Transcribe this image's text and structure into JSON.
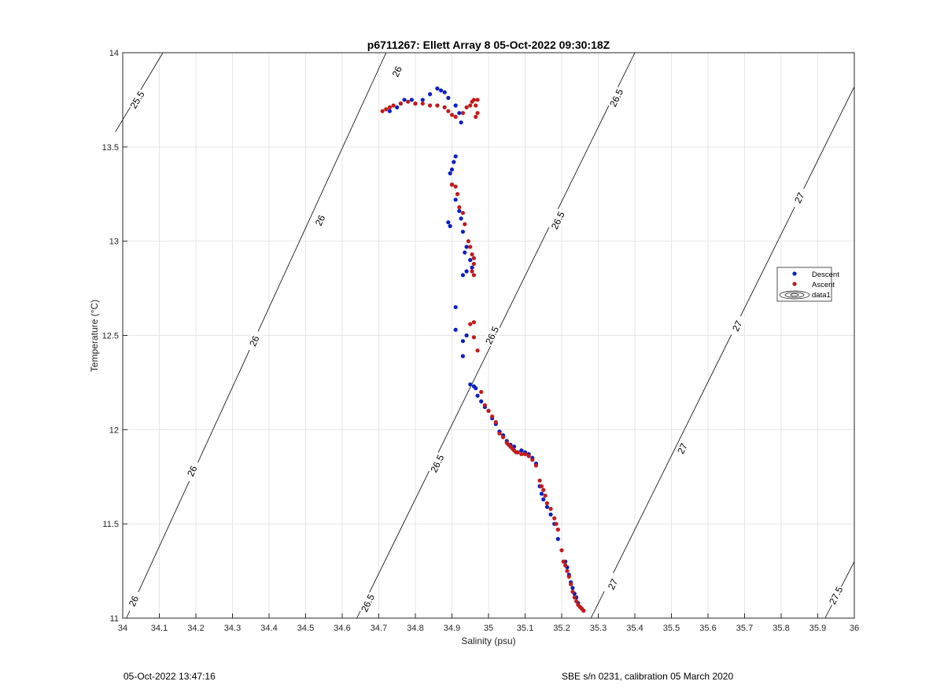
{
  "chart_data": {
    "type": "scatter",
    "title": "p6711267: Ellett Array 8 05-Oct-2022 09:30:18Z",
    "xlabel": "Salinity (psu)",
    "ylabel": "Temperature (°C)",
    "xlim": [
      34,
      36
    ],
    "ylim": [
      11,
      14
    ],
    "x_ticks": [
      34,
      34.1,
      34.2,
      34.3,
      34.4,
      34.5,
      34.6,
      34.7,
      34.8,
      34.9,
      35,
      35.1,
      35.2,
      35.3,
      35.4,
      35.5,
      35.6,
      35.7,
      35.8,
      35.9,
      36
    ],
    "x_tick_labels": [
      "34",
      "34.1",
      "34.2",
      "34.3",
      "34.4",
      "34.5",
      "34.6",
      "34.7",
      "34.8",
      "34.9",
      "35",
      "35.1",
      "35.2",
      "35.3",
      "35.4",
      "35.5",
      "35.6",
      "35.7",
      "35.8",
      "35.9",
      "36"
    ],
    "y_ticks": [
      11,
      11.5,
      12,
      12.5,
      13,
      13.5,
      14
    ],
    "y_tick_labels": [
      "11",
      "11.5",
      "12",
      "12.5",
      "13",
      "13.5",
      "14"
    ],
    "grid": true,
    "legend_position": "right",
    "legend": [
      {
        "label": "Descent",
        "color": "#0b1fc4",
        "marker": "dot"
      },
      {
        "label": "Ascent",
        "color": "#c41a1a",
        "marker": "dot"
      },
      {
        "label": "data1",
        "color": "#000000",
        "marker": "contour"
      }
    ],
    "contours": [
      {
        "label": "25.5",
        "points": [
          [
            33.98,
            13.58
          ],
          [
            34.11,
            14.0
          ]
        ],
        "labels_at": [
          [
            34.04,
            13.75
          ]
        ]
      },
      {
        "label": "26",
        "points": [
          [
            34.01,
            11.0
          ],
          [
            34.72,
            14.0
          ]
        ],
        "labels_at": [
          [
            34.75,
            13.9
          ],
          [
            34.54,
            13.11
          ],
          [
            34.36,
            12.47
          ],
          [
            34.19,
            11.78
          ],
          [
            34.03,
            11.09
          ]
        ]
      },
      {
        "label": "26.5",
        "points": [
          [
            34.64,
            11.0
          ],
          [
            35.4,
            14.0
          ]
        ],
        "labels_at": [
          [
            35.35,
            13.76
          ],
          [
            35.19,
            13.11
          ],
          [
            35.01,
            12.5
          ],
          [
            34.86,
            11.82
          ],
          [
            34.67,
            11.08
          ]
        ]
      },
      {
        "label": "27",
        "points": [
          [
            35.28,
            11.0
          ],
          [
            36.0,
            13.82
          ]
        ],
        "labels_at": [
          [
            35.85,
            13.23
          ],
          [
            35.68,
            12.55
          ],
          [
            35.53,
            11.9
          ],
          [
            35.34,
            11.18
          ]
        ]
      },
      {
        "label": "27.5",
        "points": [
          [
            35.92,
            11.0
          ],
          [
            36.0,
            11.3
          ]
        ],
        "labels_at": [
          [
            35.95,
            11.12
          ]
        ]
      }
    ],
    "series": [
      {
        "name": "Descent",
        "color": "#0b1fc4",
        "points": [
          [
            34.73,
            13.69
          ],
          [
            34.75,
            13.71
          ],
          [
            34.76,
            13.73
          ],
          [
            34.77,
            13.75
          ],
          [
            34.79,
            13.75
          ],
          [
            34.8,
            13.73
          ],
          [
            34.82,
            13.75
          ],
          [
            34.84,
            13.78
          ],
          [
            34.86,
            13.81
          ],
          [
            34.87,
            13.8
          ],
          [
            34.88,
            13.79
          ],
          [
            34.89,
            13.76
          ],
          [
            34.91,
            13.72
          ],
          [
            34.92,
            13.68
          ],
          [
            34.925,
            13.63
          ],
          [
            34.91,
            13.45
          ],
          [
            34.905,
            13.42
          ],
          [
            34.9,
            13.38
          ],
          [
            34.895,
            13.36
          ],
          [
            34.9,
            13.3
          ],
          [
            34.91,
            13.22
          ],
          [
            34.92,
            13.16
          ],
          [
            34.925,
            13.12
          ],
          [
            34.89,
            13.1
          ],
          [
            34.895,
            13.08
          ],
          [
            34.93,
            13.05
          ],
          [
            34.94,
            12.97
          ],
          [
            34.935,
            12.94
          ],
          [
            34.95,
            12.9
          ],
          [
            34.955,
            12.86
          ],
          [
            34.94,
            12.84
          ],
          [
            34.93,
            12.82
          ],
          [
            34.91,
            12.65
          ],
          [
            34.91,
            12.53
          ],
          [
            34.93,
            12.47
          ],
          [
            34.94,
            12.5
          ],
          [
            34.93,
            12.39
          ],
          [
            34.95,
            12.24
          ],
          [
            34.96,
            12.23
          ],
          [
            34.965,
            12.22
          ],
          [
            34.97,
            12.18
          ],
          [
            34.98,
            12.15
          ],
          [
            34.99,
            12.12
          ],
          [
            35.0,
            12.1
          ],
          [
            35.01,
            12.06
          ],
          [
            35.02,
            12.03
          ],
          [
            35.03,
            11.99
          ],
          [
            35.04,
            11.97
          ],
          [
            35.05,
            11.94
          ],
          [
            35.06,
            11.92
          ],
          [
            35.07,
            11.91
          ],
          [
            35.08,
            11.88
          ],
          [
            35.09,
            11.89
          ],
          [
            35.1,
            11.88
          ],
          [
            35.11,
            11.87
          ],
          [
            35.12,
            11.85
          ],
          [
            35.13,
            11.82
          ],
          [
            35.14,
            11.7
          ],
          [
            35.145,
            11.66
          ],
          [
            35.15,
            11.63
          ],
          [
            35.16,
            11.59
          ],
          [
            35.17,
            11.55
          ],
          [
            35.18,
            11.5
          ],
          [
            35.19,
            11.42
          ],
          [
            35.21,
            11.3
          ],
          [
            35.215,
            11.27
          ],
          [
            35.22,
            11.23
          ],
          [
            35.225,
            11.19
          ],
          [
            35.23,
            11.16
          ],
          [
            35.235,
            11.13
          ],
          [
            35.24,
            11.11
          ],
          [
            35.245,
            11.08
          ],
          [
            35.25,
            11.06
          ],
          [
            35.255,
            11.05
          ],
          [
            35.26,
            11.04
          ]
        ]
      },
      {
        "name": "Ascent",
        "color": "#c41a1a",
        "points": [
          [
            34.71,
            13.69
          ],
          [
            34.72,
            13.7
          ],
          [
            34.73,
            13.71
          ],
          [
            34.74,
            13.72
          ],
          [
            34.76,
            13.73
          ],
          [
            34.78,
            13.74
          ],
          [
            34.8,
            13.73
          ],
          [
            34.82,
            13.73
          ],
          [
            34.84,
            13.72
          ],
          [
            34.86,
            13.72
          ],
          [
            34.88,
            13.71
          ],
          [
            34.89,
            13.69
          ],
          [
            34.9,
            13.67
          ],
          [
            34.91,
            13.66
          ],
          [
            34.93,
            13.68
          ],
          [
            34.94,
            13.71
          ],
          [
            34.95,
            13.72
          ],
          [
            34.955,
            13.74
          ],
          [
            34.96,
            13.75
          ],
          [
            34.97,
            13.75
          ],
          [
            34.965,
            13.72
          ],
          [
            34.97,
            13.68
          ],
          [
            34.965,
            13.66
          ],
          [
            34.9,
            13.3
          ],
          [
            34.91,
            13.29
          ],
          [
            34.915,
            13.25
          ],
          [
            34.92,
            13.18
          ],
          [
            34.93,
            13.15
          ],
          [
            34.935,
            13.09
          ],
          [
            34.945,
            13.0
          ],
          [
            34.95,
            12.97
          ],
          [
            34.955,
            12.93
          ],
          [
            34.96,
            12.91
          ],
          [
            34.96,
            12.88
          ],
          [
            34.955,
            12.84
          ],
          [
            34.96,
            12.82
          ],
          [
            34.96,
            12.57
          ],
          [
            34.95,
            12.56
          ],
          [
            34.96,
            12.49
          ],
          [
            34.97,
            12.42
          ],
          [
            34.98,
            12.2
          ],
          [
            34.99,
            12.13
          ],
          [
            35.0,
            12.1
          ],
          [
            35.01,
            12.07
          ],
          [
            35.02,
            12.04
          ],
          [
            35.03,
            11.98
          ],
          [
            35.04,
            11.96
          ],
          [
            35.05,
            11.93
          ],
          [
            35.055,
            11.92
          ],
          [
            35.06,
            11.91
          ],
          [
            35.065,
            11.9
          ],
          [
            35.07,
            11.89
          ],
          [
            35.075,
            11.88
          ],
          [
            35.08,
            11.88
          ],
          [
            35.09,
            11.87
          ],
          [
            35.1,
            11.87
          ],
          [
            35.11,
            11.86
          ],
          [
            35.12,
            11.84
          ],
          [
            35.13,
            11.81
          ],
          [
            35.14,
            11.73
          ],
          [
            35.145,
            11.7
          ],
          [
            35.15,
            11.68
          ],
          [
            35.155,
            11.65
          ],
          [
            35.16,
            11.61
          ],
          [
            35.17,
            11.58
          ],
          [
            35.18,
            11.53
          ],
          [
            35.185,
            11.5
          ],
          [
            35.19,
            11.47
          ],
          [
            35.2,
            11.36
          ],
          [
            35.205,
            11.3
          ],
          [
            35.21,
            11.28
          ],
          [
            35.215,
            11.25
          ],
          [
            35.22,
            11.22
          ],
          [
            35.225,
            11.18
          ],
          [
            35.23,
            11.14
          ],
          [
            35.235,
            11.11
          ],
          [
            35.24,
            11.09
          ],
          [
            35.245,
            11.07
          ],
          [
            35.25,
            11.06
          ],
          [
            35.255,
            11.05
          ],
          [
            35.26,
            11.04
          ]
        ]
      }
    ]
  },
  "footer": {
    "left": "05-Oct-2022 13:47:16",
    "right": "SBE s/n 0231, calibration 05 March 2020"
  }
}
